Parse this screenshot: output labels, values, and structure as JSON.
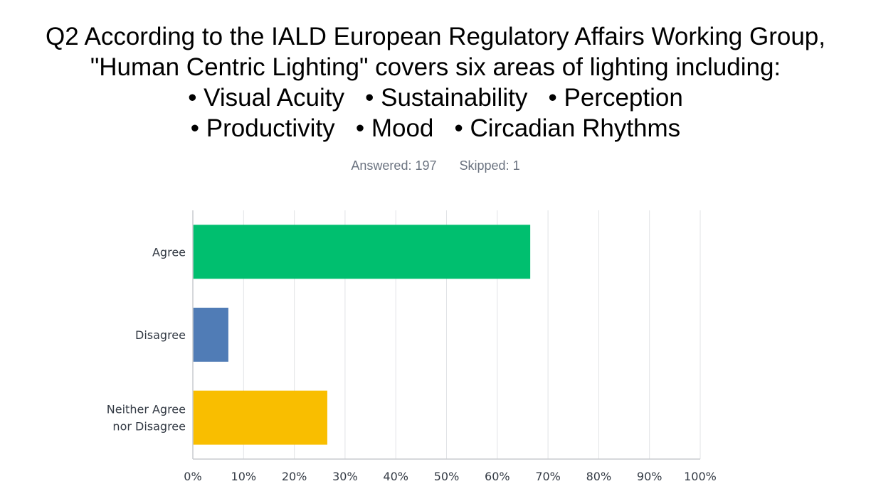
{
  "title_lines": [
    "Q2 According to the IALD European Regulatory Affairs Working Group,",
    "\"Human Centric Lighting\" covers six areas of lighting including:",
    "• Visual Acuity   • Sustainability   • Perception",
    "• Productivity   • Mood   • Circadian Rhythms"
  ],
  "meta": {
    "answered": "Answered: 197",
    "skipped": "Skipped: 1"
  },
  "chart_data": {
    "type": "bar",
    "orientation": "horizontal",
    "categories": [
      [
        "Agree"
      ],
      [
        "Disagree"
      ],
      [
        "Neither Agree",
        "nor Disagree"
      ]
    ],
    "values": [
      66.5,
      7.0,
      26.5
    ],
    "colors": [
      "#00bf6f",
      "#507cb6",
      "#f9be00"
    ],
    "xlim": [
      0,
      100
    ],
    "ticks": [
      0,
      10,
      20,
      30,
      40,
      50,
      60,
      70,
      80,
      90,
      100
    ],
    "tick_labels": [
      "0%",
      "10%",
      "20%",
      "30%",
      "40%",
      "50%",
      "60%",
      "70%",
      "80%",
      "90%",
      "100%"
    ],
    "grid": true,
    "gridline_color": "#e1e3e6",
    "axis_color": "#c9cbcf"
  }
}
